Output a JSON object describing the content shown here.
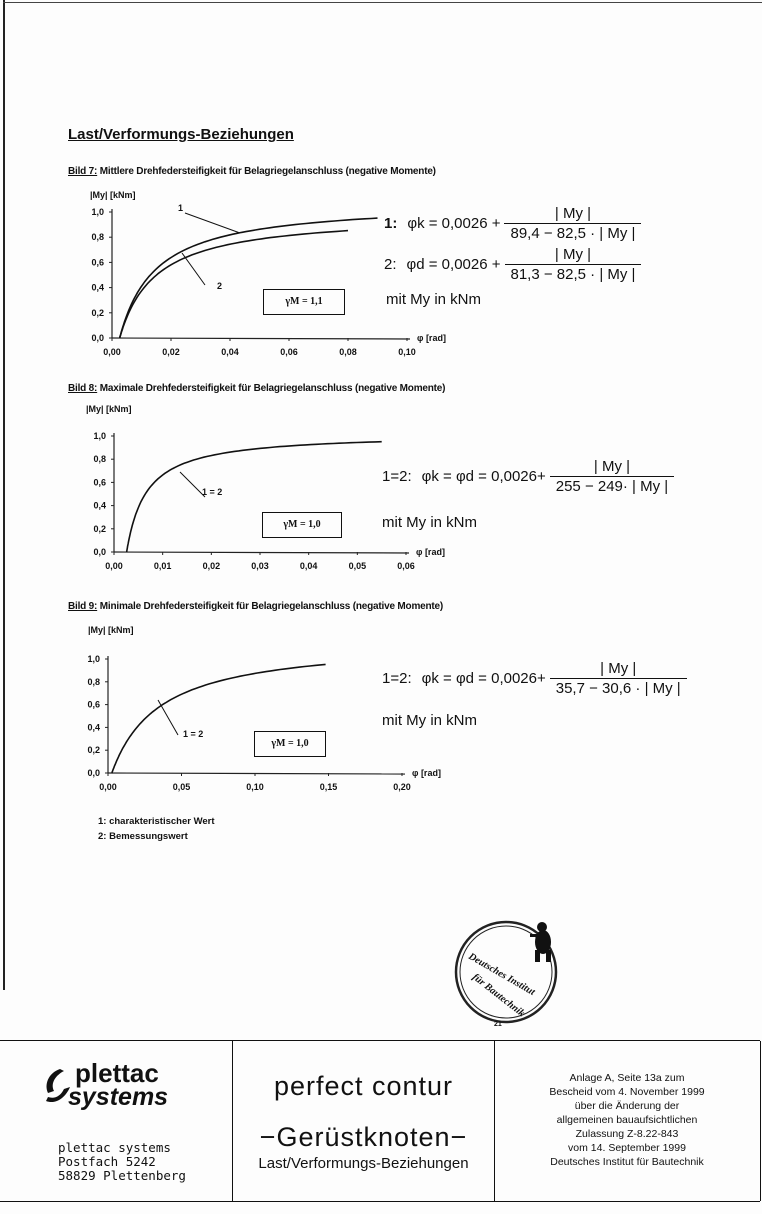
{
  "heading": "Last/Verformungs-Beziehungen",
  "figures": [
    {
      "label": "Bild 7:",
      "caption": "Mittlere Drehfedersteifigkeit für Belagriegelanschluss (negative Momente)",
      "ylabel": "|My| [kNm]",
      "xlabel": "φ [rad]",
      "gamma": "γM = 1,1",
      "curve_labels": [
        "1",
        "2"
      ],
      "equations": [
        {
          "prefix": "1:",
          "lhs": "φk = 0,0026 +",
          "num": "| My |",
          "den": "89,4 − 82,5 · | My |"
        },
        {
          "prefix": "2:",
          "lhs": "φd = 0,0026 +",
          "num": "| My |",
          "den": "81,3 − 82,5 · | My |"
        }
      ],
      "unit_note": "mit My in kNm"
    },
    {
      "label": "Bild 8:",
      "caption": "Maximale Drehfedersteifigkeit für Belagriegelanschluss (negative Momente)",
      "ylabel": "|My| [kNm]",
      "xlabel": "φ [rad]",
      "gamma": "γM = 1,0",
      "curve_labels": [
        "1 = 2"
      ],
      "equations": [
        {
          "prefix": "1=2:",
          "lhs": "φk = φd = 0,0026+",
          "num": "| My |",
          "den": "255 − 249· | My |"
        }
      ],
      "unit_note": "mit My in kNm"
    },
    {
      "label": "Bild 9:",
      "caption": "Minimale Drehfedersteifigkeit für Belagriegelanschluss (negative Momente)",
      "ylabel": "|My| [kNm]",
      "xlabel": "φ [rad]",
      "gamma": "γM = 1,0",
      "curve_labels": [
        "1 = 2"
      ],
      "equations": [
        {
          "prefix": "1=2:",
          "lhs": "φk = φd = 0,0026+",
          "num": "| My |",
          "den": "35,7 − 30,6 · | My |"
        }
      ],
      "unit_note": "mit My in kNm"
    }
  ],
  "legend": [
    "1: charakteristischer Wert",
    "2: Bemessungswert"
  ],
  "chart_data": [
    {
      "type": "line",
      "title": "Bild 7",
      "xlabel": "φ [rad]",
      "ylabel": "|My| [kNm]",
      "xlim": [
        0,
        0.1
      ],
      "ylim": [
        0,
        1.0
      ],
      "xticks": [
        "0,00",
        "0,02",
        "0,04",
        "0,06",
        "0,08",
        "0,10"
      ],
      "yticks": [
        "0,0",
        "0,2",
        "0,4",
        "0,6",
        "0,8",
        "1,0"
      ],
      "series": [
        {
          "name": "1",
          "phi0": 0.0026,
          "a": 89.4,
          "b": 82.5,
          "phi_end": 0.09
        },
        {
          "name": "2",
          "phi0": 0.0026,
          "a": 81.3,
          "b": 82.5,
          "phi_end": 0.08
        }
      ]
    },
    {
      "type": "line",
      "title": "Bild 8",
      "xlabel": "φ [rad]",
      "ylabel": "|My| [kNm]",
      "xlim": [
        0,
        0.06
      ],
      "ylim": [
        0,
        1.0
      ],
      "xticks": [
        "0,00",
        "0,01",
        "0,02",
        "0,03",
        "0,04",
        "0,05",
        "0,06"
      ],
      "yticks": [
        "0,0",
        "0,2",
        "0,4",
        "0,6",
        "0,8",
        "1,0"
      ],
      "series": [
        {
          "name": "1 = 2",
          "phi0": 0.0026,
          "a": 255,
          "b": 249,
          "phi_end": 0.055
        }
      ]
    },
    {
      "type": "line",
      "title": "Bild 9",
      "xlabel": "φ [rad]",
      "ylabel": "|My| [kNm]",
      "xlim": [
        0,
        0.2
      ],
      "ylim": [
        0,
        1.0
      ],
      "xticks": [
        "0,00",
        "0,05",
        "0,10",
        "0,15",
        "0,20"
      ],
      "yticks": [
        "0,0",
        "0,2",
        "0,4",
        "0,6",
        "0,8",
        "1,0"
      ],
      "series": [
        {
          "name": "1 = 2",
          "phi0": 0.0026,
          "a": 35.7,
          "b": 30.6,
          "phi_end": 0.148
        }
      ]
    }
  ],
  "stamp": {
    "text": "Deutsches Institut für Bautechnik",
    "number": "21"
  },
  "footer": {
    "logo_line1": "plettac",
    "logo_line2": "systems",
    "address": [
      "plettac systems",
      "Postfach 5242",
      "58829 Plettenberg"
    ],
    "product": "perfect contur",
    "subtitle": "−Gerüstknoten−",
    "section": "Last/Verformungs-Beziehungen",
    "approval": [
      "Anlage A, Seite 13a zum",
      "Bescheid vom 4. November 1999",
      "über die Änderung der",
      "allgemeinen bauaufsichtlichen",
      "Zulassung Z-8.22-843",
      "vom 14. September 1999",
      "Deutsches Institut für Bautechnik"
    ]
  }
}
